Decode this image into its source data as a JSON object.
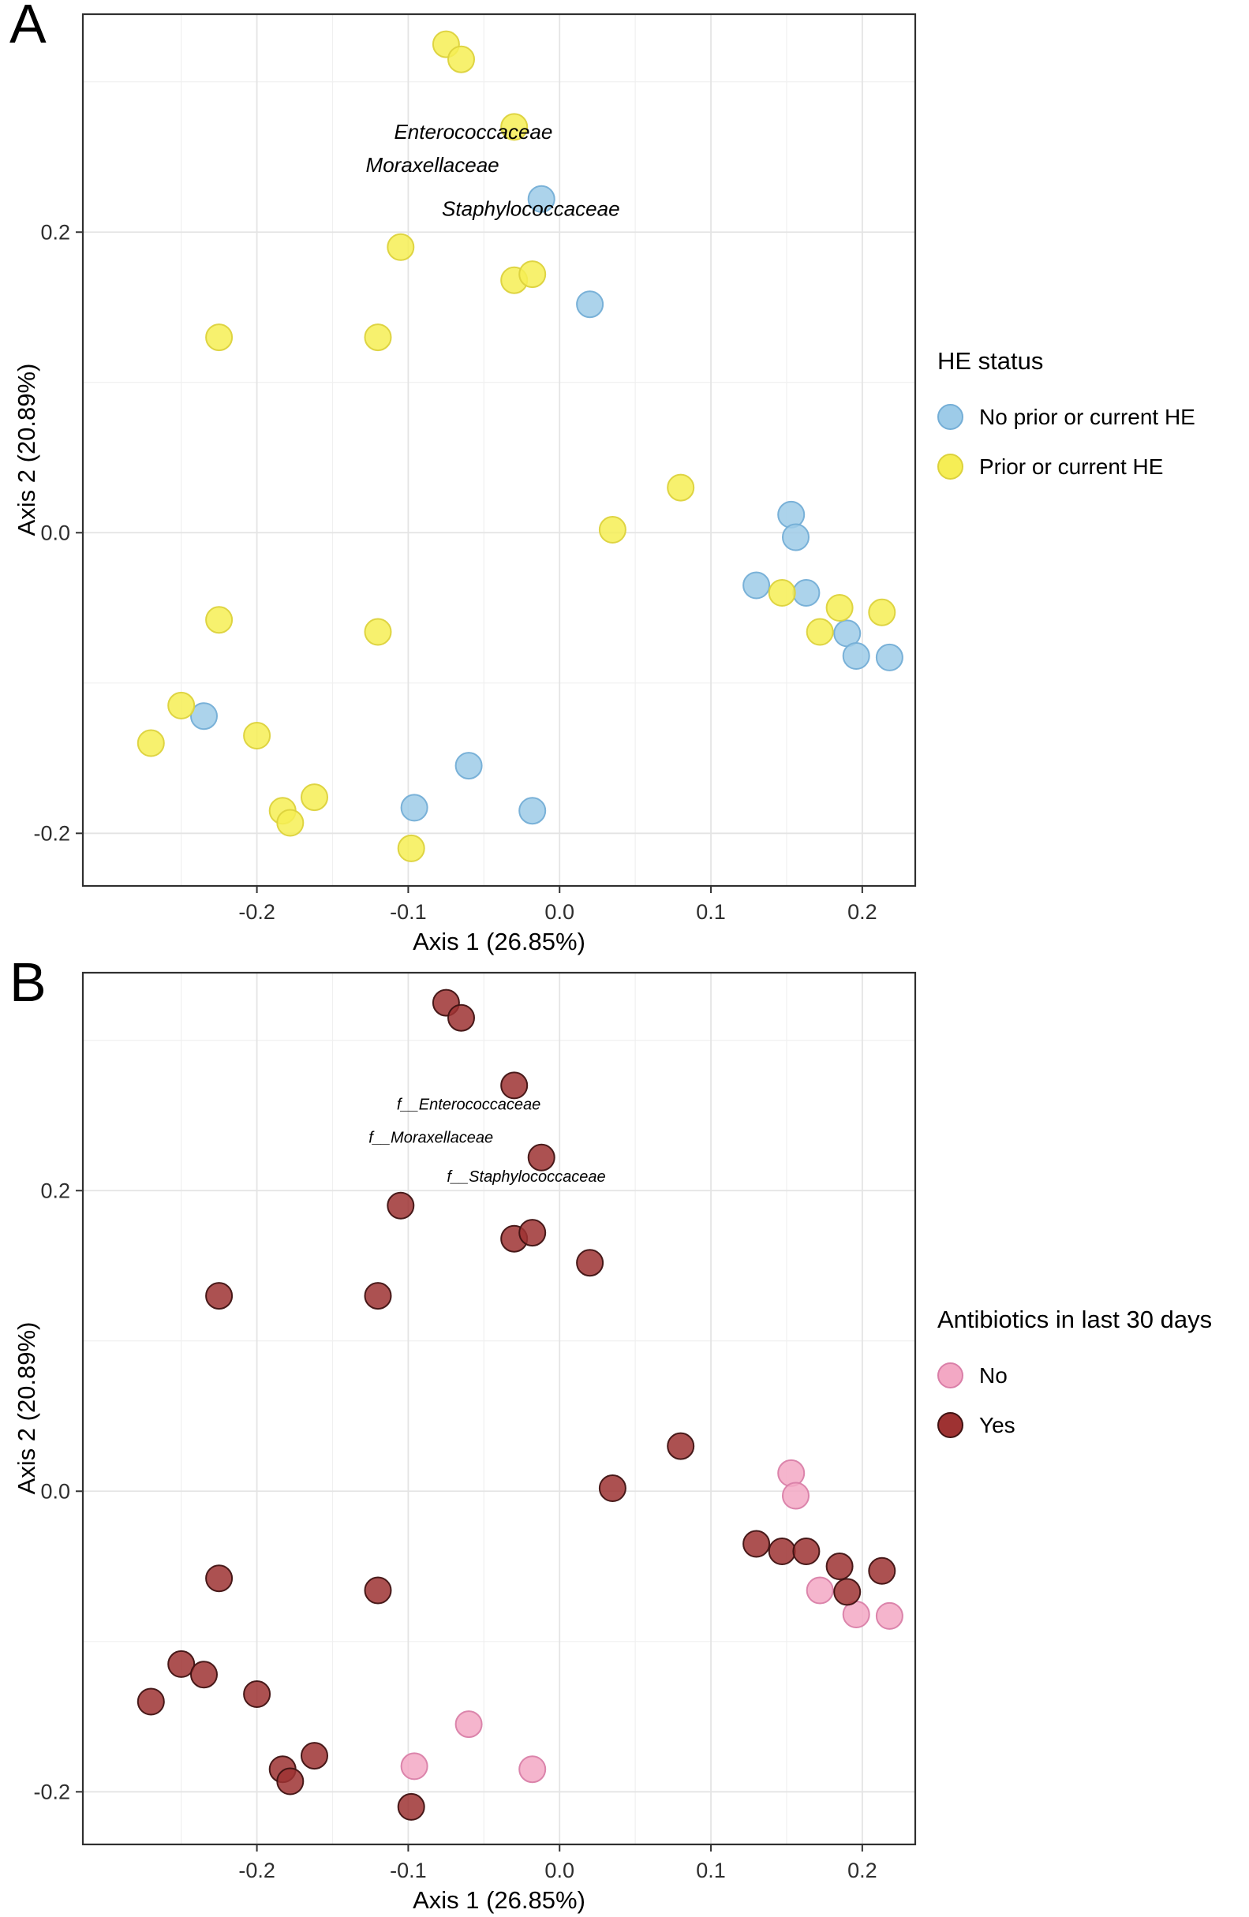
{
  "chart_data": [
    {
      "type": "scatter",
      "panel": "A",
      "xlabel": "Axis 1 (26.85%)",
      "ylabel": "Axis 2 (20.89%)",
      "xlim": [
        -0.315,
        0.235
      ],
      "ylim": [
        -0.235,
        0.345
      ],
      "xticks": [
        -0.2,
        -0.1,
        0,
        0.1,
        0.2
      ],
      "xtick_labels": [
        "-0.2",
        "-0.1",
        "0.0",
        "0.1",
        "0.2"
      ],
      "yticks": [
        -0.2,
        0,
        0.2
      ],
      "ytick_labels": [
        "-0.2",
        "0.0",
        "0.2"
      ],
      "grid": true,
      "legend": {
        "title": "HE status",
        "position": "right"
      },
      "annotations": [
        {
          "text": "Enterococcaceae",
          "x": -0.057,
          "y": 0.262
        },
        {
          "text": "Moraxellaceae",
          "x": -0.084,
          "y": 0.24
        },
        {
          "text": "Staphylococcaceae",
          "x": -0.019,
          "y": 0.211
        }
      ],
      "series": [
        {
          "name": "No prior or current HE",
          "fill": "#9DCBE8",
          "stroke": "#74AED6",
          "points": [
            [
              -0.012,
              0.222
            ],
            [
              0.02,
              0.152
            ],
            [
              0.153,
              0.012
            ],
            [
              0.156,
              -0.003
            ],
            [
              0.13,
              -0.035
            ],
            [
              0.163,
              -0.04
            ],
            [
              0.19,
              -0.067
            ],
            [
              0.196,
              -0.082
            ],
            [
              0.218,
              -0.083
            ],
            [
              -0.235,
              -0.122
            ],
            [
              -0.06,
              -0.155
            ],
            [
              -0.096,
              -0.183
            ],
            [
              -0.018,
              -0.185
            ]
          ]
        },
        {
          "name": "Prior or current HE",
          "fill": "#F6EE55",
          "stroke": "#DCD23C",
          "points": [
            [
              -0.075,
              0.325
            ],
            [
              -0.065,
              0.315
            ],
            [
              -0.03,
              0.27
            ],
            [
              -0.105,
              0.19
            ],
            [
              -0.03,
              0.168
            ],
            [
              -0.018,
              0.172
            ],
            [
              -0.225,
              0.13
            ],
            [
              -0.12,
              0.13
            ],
            [
              0.08,
              0.03
            ],
            [
              0.035,
              0.002
            ],
            [
              0.147,
              -0.04
            ],
            [
              0.185,
              -0.05
            ],
            [
              0.213,
              -0.053
            ],
            [
              0.172,
              -0.066
            ],
            [
              -0.225,
              -0.058
            ],
            [
              -0.12,
              -0.066
            ],
            [
              -0.25,
              -0.115
            ],
            [
              -0.27,
              -0.14
            ],
            [
              -0.2,
              -0.135
            ],
            [
              -0.183,
              -0.185
            ],
            [
              -0.178,
              -0.193
            ],
            [
              -0.162,
              -0.176
            ],
            [
              -0.098,
              -0.21
            ]
          ]
        }
      ]
    },
    {
      "type": "scatter",
      "panel": "B",
      "xlabel": "Axis 1 (26.85%)",
      "ylabel": "Axis 2 (20.89%)",
      "xlim": [
        -0.315,
        0.235
      ],
      "ylim": [
        -0.235,
        0.345
      ],
      "xticks": [
        -0.2,
        -0.1,
        0,
        0.1,
        0.2
      ],
      "xtick_labels": [
        "-0.2",
        "-0.1",
        "0.0",
        "0.1",
        "0.2"
      ],
      "yticks": [
        -0.2,
        0,
        0.2
      ],
      "ytick_labels": [
        "-0.2",
        "0.0",
        "0.2"
      ],
      "grid": true,
      "legend": {
        "title": "Antibiotics in last 30 days",
        "position": "right"
      },
      "annotations": [
        {
          "text": "f__Enterococcaceae",
          "x": -0.06,
          "y": 0.254
        },
        {
          "text": "f__Moraxellaceae",
          "x": -0.085,
          "y": 0.232
        },
        {
          "text": "f__Staphylococcaceae",
          "x": -0.022,
          "y": 0.206
        }
      ],
      "series": [
        {
          "name": "No",
          "fill": "#F3A8C4",
          "stroke": "#D97FA8",
          "points": [
            [
              0.153,
              0.012
            ],
            [
              0.156,
              -0.003
            ],
            [
              0.172,
              -0.066
            ],
            [
              0.196,
              -0.082
            ],
            [
              0.218,
              -0.083
            ],
            [
              -0.06,
              -0.155
            ],
            [
              -0.096,
              -0.183
            ],
            [
              -0.018,
              -0.185
            ]
          ]
        },
        {
          "name": "Yes",
          "fill": "#9E3232",
          "stroke": "#3F1212",
          "points": [
            [
              -0.075,
              0.325
            ],
            [
              -0.065,
              0.315
            ],
            [
              -0.03,
              0.27
            ],
            [
              -0.012,
              0.222
            ],
            [
              -0.105,
              0.19
            ],
            [
              -0.03,
              0.168
            ],
            [
              -0.018,
              0.172
            ],
            [
              0.02,
              0.152
            ],
            [
              -0.225,
              0.13
            ],
            [
              -0.12,
              0.13
            ],
            [
              0.08,
              0.03
            ],
            [
              0.035,
              0.002
            ],
            [
              0.13,
              -0.035
            ],
            [
              0.147,
              -0.04
            ],
            [
              0.163,
              -0.04
            ],
            [
              0.185,
              -0.05
            ],
            [
              0.213,
              -0.053
            ],
            [
              0.19,
              -0.067
            ],
            [
              -0.225,
              -0.058
            ],
            [
              -0.12,
              -0.066
            ],
            [
              -0.25,
              -0.115
            ],
            [
              -0.235,
              -0.122
            ],
            [
              -0.27,
              -0.14
            ],
            [
              -0.2,
              -0.135
            ],
            [
              -0.183,
              -0.185
            ],
            [
              -0.178,
              -0.193
            ],
            [
              -0.162,
              -0.176
            ],
            [
              -0.098,
              -0.21
            ]
          ]
        }
      ]
    }
  ]
}
